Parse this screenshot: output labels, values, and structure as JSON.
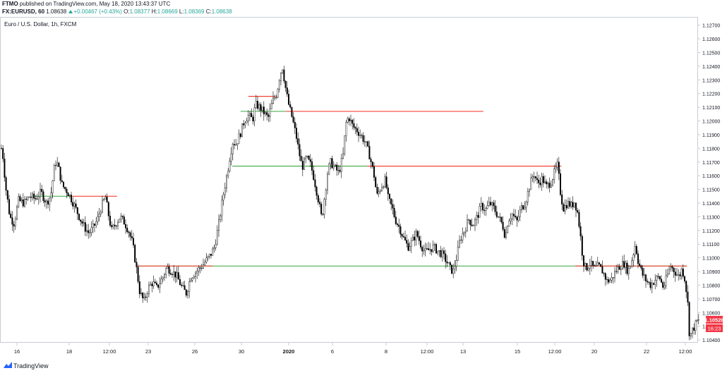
{
  "header": {
    "publisher": "FTMO",
    "published_text": "published on TradingView.com, May 18, 2020 13:43:37 UTC",
    "symbol": "FX:EURUSD, 60",
    "last": "1.08638",
    "change": "+0.00467 (+0.43%)",
    "o_label": "O:",
    "o_value": "1.08377",
    "h_label": "H:",
    "h_value": "1.08669",
    "l_label": "L:",
    "l_value": "1.08369",
    "c_label": "C:",
    "c_value": "1.08638"
  },
  "footer": {
    "brand": "TradingView"
  },
  "chart_data": {
    "type": "candlestick",
    "title": "Euro / U.S. Dollar, 1h, FXCM",
    "ylim": [
      1.1038,
      1.1276
    ],
    "y_ticks": [
      "1.12700",
      "1.12600",
      "1.12500",
      "1.12400",
      "1.12300",
      "1.12200",
      "1.12100",
      "1.12000",
      "1.11900",
      "1.11800",
      "1.11700",
      "1.11600",
      "1.11500",
      "1.11400",
      "1.11300",
      "1.11200",
      "1.11100",
      "1.11000",
      "1.10900",
      "1.10800",
      "1.10700",
      "1.10600",
      "1.10500",
      "1.10400"
    ],
    "x_ticks": [
      "16",
      "18",
      "12:00",
      "23",
      "26",
      "30",
      "2020",
      "6",
      "8",
      "12:00",
      "13",
      "15",
      "12:00",
      "20",
      "22",
      "12:00"
    ],
    "last_price_label": "1.10528",
    "countdown_label": "16:23",
    "colors": {
      "up": "#26a69a",
      "down": "#ef5350",
      "candle": "#000000",
      "support": "#4caf50",
      "resistance": "#f44336",
      "price_tag": "#f23645"
    },
    "series_path": [
      [
        0,
        1.1185
      ],
      [
        4,
        1.1175
      ],
      [
        8,
        1.1152
      ],
      [
        14,
        1.113
      ],
      [
        20,
        1.1125
      ],
      [
        26,
        1.1142
      ],
      [
        34,
        1.114
      ],
      [
        42,
        1.1145
      ],
      [
        50,
        1.1143
      ],
      [
        58,
        1.1148
      ],
      [
        66,
        1.114
      ],
      [
        72,
        1.1146
      ],
      [
        78,
        1.117
      ],
      [
        82,
        1.1168
      ],
      [
        88,
        1.1153
      ],
      [
        96,
        1.1148
      ],
      [
        102,
        1.1142
      ],
      [
        108,
        1.1135
      ],
      [
        114,
        1.1128
      ],
      [
        120,
        1.1122
      ],
      [
        126,
        1.1118
      ],
      [
        132,
        1.1122
      ],
      [
        138,
        1.1128
      ],
      [
        144,
        1.1138
      ],
      [
        150,
        1.1145
      ],
      [
        152,
        1.1136
      ],
      [
        158,
        1.112
      ],
      [
        164,
        1.1125
      ],
      [
        170,
        1.113
      ],
      [
        176,
        1.1126
      ],
      [
        182,
        1.112
      ],
      [
        188,
        1.111
      ],
      [
        194,
        1.109
      ],
      [
        198,
        1.1075
      ],
      [
        204,
        1.1068
      ],
      [
        210,
        1.1078
      ],
      [
        216,
        1.1082
      ],
      [
        222,
        1.1078
      ],
      [
        230,
        1.1085
      ],
      [
        236,
        1.1093
      ],
      [
        244,
        1.109
      ],
      [
        250,
        1.1087
      ],
      [
        258,
        1.1078
      ],
      [
        264,
        1.1074
      ],
      [
        270,
        1.1086
      ],
      [
        278,
        1.109
      ],
      [
        286,
        1.1094
      ],
      [
        292,
        1.1098
      ],
      [
        298,
        1.1102
      ],
      [
        304,
        1.1108
      ],
      [
        310,
        1.1125
      ],
      [
        316,
        1.1145
      ],
      [
        322,
        1.1162
      ],
      [
        326,
        1.1175
      ],
      [
        330,
        1.1185
      ],
      [
        334,
        1.1183
      ],
      [
        340,
        1.119
      ],
      [
        346,
        1.12
      ],
      [
        352,
        1.1204
      ],
      [
        358,
        1.1201
      ],
      [
        362,
        1.1212
      ],
      [
        368,
        1.121
      ],
      [
        374,
        1.1206
      ],
      [
        380,
        1.1202
      ],
      [
        386,
        1.1214
      ],
      [
        392,
        1.122
      ],
      [
        396,
        1.1232
      ],
      [
        400,
        1.124
      ],
      [
        404,
        1.1226
      ],
      [
        408,
        1.1214
      ],
      [
        414,
        1.1202
      ],
      [
        420,
        1.1188
      ],
      [
        424,
        1.1176
      ],
      [
        428,
        1.1166
      ],
      [
        434,
        1.1173
      ],
      [
        440,
        1.1168
      ],
      [
        444,
        1.116
      ],
      [
        448,
        1.115
      ],
      [
        452,
        1.114
      ],
      [
        456,
        1.1128
      ],
      [
        460,
        1.1145
      ],
      [
        464,
        1.1162
      ],
      [
        468,
        1.117
      ],
      [
        474,
        1.1166
      ],
      [
        480,
        1.1162
      ],
      [
        486,
        1.1175
      ],
      [
        490,
        1.1198
      ],
      [
        494,
        1.1203
      ],
      [
        500,
        1.1196
      ],
      [
        506,
        1.1193
      ],
      [
        512,
        1.1189
      ],
      [
        518,
        1.1184
      ],
      [
        524,
        1.1174
      ],
      [
        530,
        1.116
      ],
      [
        534,
        1.1145
      ],
      [
        540,
        1.1152
      ],
      [
        546,
        1.1157
      ],
      [
        550,
        1.1143
      ],
      [
        556,
        1.1136
      ],
      [
        560,
        1.1128
      ],
      [
        566,
        1.1122
      ],
      [
        572,
        1.1114
      ],
      [
        578,
        1.1108
      ],
      [
        584,
        1.1112
      ],
      [
        590,
        1.1118
      ],
      [
        596,
        1.111
      ],
      [
        602,
        1.1104
      ],
      [
        608,
        1.1106
      ],
      [
        614,
        1.1108
      ],
      [
        620,
        1.1105
      ],
      [
        626,
        1.1103
      ],
      [
        632,
        1.1098
      ],
      [
        638,
        1.1092
      ],
      [
        642,
        1.109
      ],
      [
        646,
        1.1098
      ],
      [
        652,
        1.1114
      ],
      [
        658,
        1.112
      ],
      [
        664,
        1.1128
      ],
      [
        670,
        1.1124
      ],
      [
        676,
        1.113
      ],
      [
        682,
        1.1138
      ],
      [
        688,
        1.1135
      ],
      [
        694,
        1.114
      ],
      [
        700,
        1.1136
      ],
      [
        706,
        1.113
      ],
      [
        712,
        1.1124
      ],
      [
        716,
        1.1115
      ],
      [
        720,
        1.1128
      ],
      [
        726,
        1.1132
      ],
      [
        732,
        1.1126
      ],
      [
        738,
        1.1136
      ],
      [
        744,
        1.114
      ],
      [
        750,
        1.1152
      ],
      [
        756,
        1.1162
      ],
      [
        762,
        1.1154
      ],
      [
        768,
        1.1158
      ],
      [
        774,
        1.1152
      ],
      [
        780,
        1.1155
      ],
      [
        786,
        1.1163
      ],
      [
        790,
        1.1168
      ],
      [
        794,
        1.1148
      ],
      [
        798,
        1.1136
      ],
      [
        804,
        1.114
      ],
      [
        810,
        1.1138
      ],
      [
        814,
        1.1141
      ],
      [
        818,
        1.1134
      ],
      [
        822,
        1.1118
      ],
      [
        826,
        1.1098
      ],
      [
        830,
        1.1092
      ],
      [
        836,
        1.1096
      ],
      [
        842,
        1.1092
      ],
      [
        848,
        1.1094
      ],
      [
        854,
        1.109
      ],
      [
        860,
        1.1083
      ],
      [
        866,
        1.1084
      ],
      [
        872,
        1.109
      ],
      [
        878,
        1.1094
      ],
      [
        884,
        1.1096
      ],
      [
        890,
        1.109
      ],
      [
        896,
        1.11
      ],
      [
        900,
        1.111
      ],
      [
        904,
        1.1098
      ],
      [
        910,
        1.1088
      ],
      [
        916,
        1.1083
      ],
      [
        922,
        1.108
      ],
      [
        928,
        1.1084
      ],
      [
        934,
        1.1086
      ],
      [
        940,
        1.1078
      ],
      [
        946,
        1.1088
      ],
      [
        950,
        1.1094
      ],
      [
        956,
        1.109
      ],
      [
        962,
        1.1086
      ],
      [
        966,
        1.1092
      ],
      [
        970,
        1.1085
      ],
      [
        974,
        1.107
      ],
      [
        977,
        1.1042
      ],
      [
        980,
        1.1046
      ],
      [
        984,
        1.105
      ],
      [
        988,
        1.1054
      ],
      [
        993,
        1.1053
      ]
    ],
    "horizontal_levels": [
      {
        "value": 1.1094,
        "x_from_frac": 0.198,
        "x_to_frac": 0.985,
        "color": "#4caf50"
      },
      {
        "value": 1.1094,
        "x_from_frac": 0.198,
        "x_to_frac": 0.305,
        "color": "#f44336"
      },
      {
        "value": 1.1094,
        "x_from_frac": 0.825,
        "x_to_frac": 0.985,
        "color": "#f44336"
      },
      {
        "value": 1.1145,
        "x_from_frac": 0.045,
        "x_to_frac": 0.103,
        "color": "#4caf50"
      },
      {
        "value": 1.1145,
        "x_from_frac": 0.103,
        "x_to_frac": 0.168,
        "color": "#f44336"
      },
      {
        "value": 1.1167,
        "x_from_frac": 0.333,
        "x_to_frac": 0.527,
        "color": "#4caf50"
      },
      {
        "value": 1.1167,
        "x_from_frac": 0.527,
        "x_to_frac": 0.805,
        "color": "#f44336"
      },
      {
        "value": 1.1207,
        "x_from_frac": 0.345,
        "x_to_frac": 0.41,
        "color": "#4caf50"
      },
      {
        "value": 1.1207,
        "x_from_frac": 0.41,
        "x_to_frac": 0.693,
        "color": "#f44336"
      },
      {
        "value": 1.1218,
        "x_from_frac": 0.356,
        "x_to_frac": 0.395,
        "color": "#f44336"
      }
    ]
  }
}
